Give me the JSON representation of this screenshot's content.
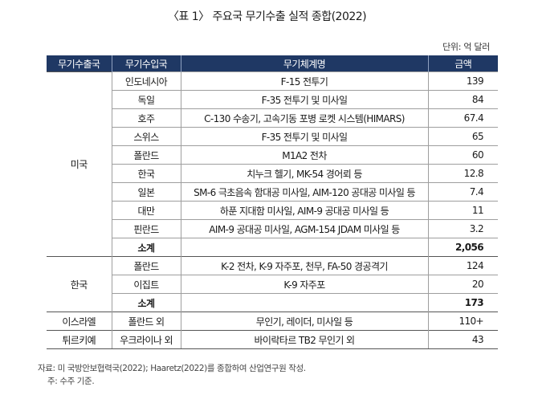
{
  "title": "〈표 1〉 주요국 무기수출 실적 종합(2022)",
  "unit": "단위: 억 달러",
  "headers": [
    "무기수출국",
    "무기수입국",
    "무기체계명",
    "금액"
  ],
  "groups": [
    {
      "exporter": "미국",
      "rows": [
        {
          "importer": "인도네시아",
          "system": "F-15 전투기",
          "amount": "139"
        },
        {
          "importer": "독일",
          "system": "F-35 전투기 및 미사일",
          "amount": "84"
        },
        {
          "importer": "호주",
          "system": "C-130 수송기, 고속기동 포병 로켓 시스템(HIMARS)",
          "amount": "67.4"
        },
        {
          "importer": "스위스",
          "system": "F-35 전투기 및 미사일",
          "amount": "65"
        },
        {
          "importer": "폴란드",
          "system": "M1A2 전차",
          "amount": "60"
        },
        {
          "importer": "한국",
          "system": "치누크 헬기, MK-54 경어뢰 등",
          "amount": "12.8"
        },
        {
          "importer": "일본",
          "system": "SM-6 극초음속 함대공 미사일, AIM-120 공대공 미사일 등",
          "amount": "7.4"
        },
        {
          "importer": "대만",
          "system": "하푼 지대함 미사일, AIM-9 공대공 미사일 등",
          "amount": "11"
        },
        {
          "importer": "핀란드",
          "system": "AIM-9 공대공 미사일, AGM-154 JDAM 미사일 등",
          "amount": "3.2"
        }
      ],
      "subtotal": {
        "label": "소계",
        "amount": "2,056"
      }
    },
    {
      "exporter": "한국",
      "rows": [
        {
          "importer": "폴란드",
          "system": "K-2 전차, K-9 자주포, 천무, FA-50 경공격기",
          "amount": "124"
        },
        {
          "importer": "이집트",
          "system": "K-9 자주포",
          "amount": "20"
        }
      ],
      "subtotal": {
        "label": "소계",
        "amount": "173"
      }
    },
    {
      "exporter": "이스라엘",
      "rows": [
        {
          "importer": "폴란드 외",
          "system": "무인기, 레이더, 미사일 등",
          "amount": "110+"
        }
      ]
    },
    {
      "exporter": "튀르키예",
      "rows": [
        {
          "importer": "우크라이나 외",
          "system": "바이락타르 TB2 무인기 외",
          "amount": "43"
        }
      ]
    }
  ],
  "source_note": "자료: 미 국방안보협력국(2022); Haaretz(2022)를 종합하여 산업연구원 작성.",
  "note": "주: 수주 기준."
}
